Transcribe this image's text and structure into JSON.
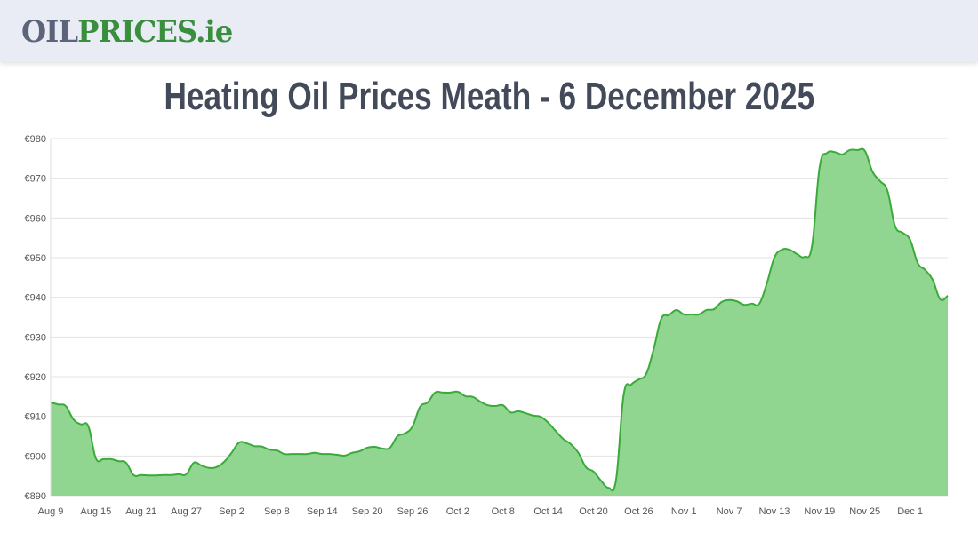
{
  "header": {
    "logo_part1": "OIL",
    "logo_part2": "PRICES.ie"
  },
  "title": "Heating Oil Prices Meath - 6 December 2025",
  "chart_data": {
    "type": "area",
    "title": "Heating Oil Prices Meath - 6 December 2025",
    "xlabel": "",
    "ylabel": "",
    "ylim": [
      890,
      980
    ],
    "y_ticks": [
      "€890",
      "€900",
      "€910",
      "€920",
      "€930",
      "€940",
      "€950",
      "€960",
      "€970",
      "€980"
    ],
    "x_ticks": [
      "Aug 9",
      "Aug 15",
      "Aug 21",
      "Aug 27",
      "Sep 2",
      "Sep 8",
      "Sep 14",
      "Sep 20",
      "Sep 26",
      "Oct 2",
      "Oct 8",
      "Oct 14",
      "Oct 20",
      "Oct 26",
      "Nov 1",
      "Nov 7",
      "Nov 13",
      "Nov 19",
      "Nov 25",
      "Dec 1"
    ],
    "grid": true,
    "colors": {
      "line": "#3aab3a",
      "fill": "#90d590"
    },
    "x": [
      "Aug 9",
      "Aug 10",
      "Aug 11",
      "Aug 12",
      "Aug 13",
      "Aug 14",
      "Aug 15",
      "Aug 16",
      "Aug 17",
      "Aug 18",
      "Aug 19",
      "Aug 20",
      "Aug 21",
      "Aug 22",
      "Aug 23",
      "Aug 24",
      "Aug 25",
      "Aug 26",
      "Aug 27",
      "Aug 28",
      "Aug 29",
      "Aug 30",
      "Aug 31",
      "Sep 1",
      "Sep 2",
      "Sep 3",
      "Sep 4",
      "Sep 5",
      "Sep 6",
      "Sep 7",
      "Sep 8",
      "Sep 9",
      "Sep 10",
      "Sep 11",
      "Sep 12",
      "Sep 13",
      "Sep 14",
      "Sep 15",
      "Sep 16",
      "Sep 17",
      "Sep 18",
      "Sep 19",
      "Sep 20",
      "Sep 21",
      "Sep 22",
      "Sep 23",
      "Sep 24",
      "Sep 25",
      "Sep 26",
      "Sep 27",
      "Sep 28",
      "Sep 29",
      "Sep 30",
      "Oct 1",
      "Oct 2",
      "Oct 3",
      "Oct 4",
      "Oct 5",
      "Oct 6",
      "Oct 7",
      "Oct 8",
      "Oct 9",
      "Oct 10",
      "Oct 11",
      "Oct 12",
      "Oct 13",
      "Oct 14",
      "Oct 15",
      "Oct 16",
      "Oct 17",
      "Oct 18",
      "Oct 19",
      "Oct 20",
      "Oct 21",
      "Oct 22",
      "Oct 23",
      "Oct 24",
      "Oct 25",
      "Oct 26",
      "Oct 27",
      "Oct 28",
      "Oct 29",
      "Oct 30",
      "Oct 31",
      "Nov 1",
      "Nov 2",
      "Nov 3",
      "Nov 4",
      "Nov 5",
      "Nov 6",
      "Nov 7",
      "Nov 8",
      "Nov 9",
      "Nov 10",
      "Nov 11",
      "Nov 12",
      "Nov 13",
      "Nov 14",
      "Nov 15",
      "Nov 16",
      "Nov 17",
      "Nov 18",
      "Nov 19",
      "Nov 20",
      "Nov 21",
      "Nov 22",
      "Nov 23",
      "Nov 24",
      "Nov 25",
      "Nov 26",
      "Nov 27",
      "Nov 28",
      "Nov 29",
      "Nov 30",
      "Dec 1",
      "Dec 2",
      "Dec 3",
      "Dec 4",
      "Dec 5",
      "Dec 6"
    ],
    "values": [
      913.5,
      913,
      912.6,
      909.3,
      908,
      907.5,
      899.4,
      899.2,
      899.2,
      898.7,
      898.3,
      895.2,
      895.2,
      895.1,
      895.1,
      895.2,
      895.2,
      895.4,
      895.4,
      898.3,
      897.6,
      897,
      897.2,
      898.5,
      900.8,
      903.4,
      903.2,
      902.5,
      902.4,
      901.6,
      901.4,
      900.5,
      900.5,
      900.5,
      900.5,
      900.8,
      900.5,
      900.5,
      900.3,
      900.1,
      900.8,
      901.2,
      902.1,
      902.3,
      901.9,
      902.1,
      905,
      905.7,
      907.5,
      912.4,
      913.5,
      916,
      916,
      916,
      916.2,
      915.1,
      914.9,
      913.7,
      912.8,
      912.6,
      912.8,
      911,
      911.3,
      910.8,
      910.2,
      909.9,
      908.4,
      906.3,
      904.3,
      903,
      900.8,
      897.2,
      896.1,
      893.8,
      892,
      894,
      915.3,
      918,
      919.3,
      920.7,
      927,
      934.6,
      935.5,
      936.8,
      935.7,
      935.7,
      935.7,
      936.8,
      937,
      938.8,
      939.3,
      939,
      938.1,
      938.4,
      938.4,
      943.5,
      950,
      952,
      952,
      950.9,
      950.2,
      953.1,
      972.8,
      976.4,
      976.6,
      976,
      977.1,
      977.1,
      976.9,
      971.7,
      969.3,
      966.8,
      958,
      956.3,
      954.5,
      948.7,
      946.9,
      944.4,
      939.5,
      940.4
    ]
  }
}
